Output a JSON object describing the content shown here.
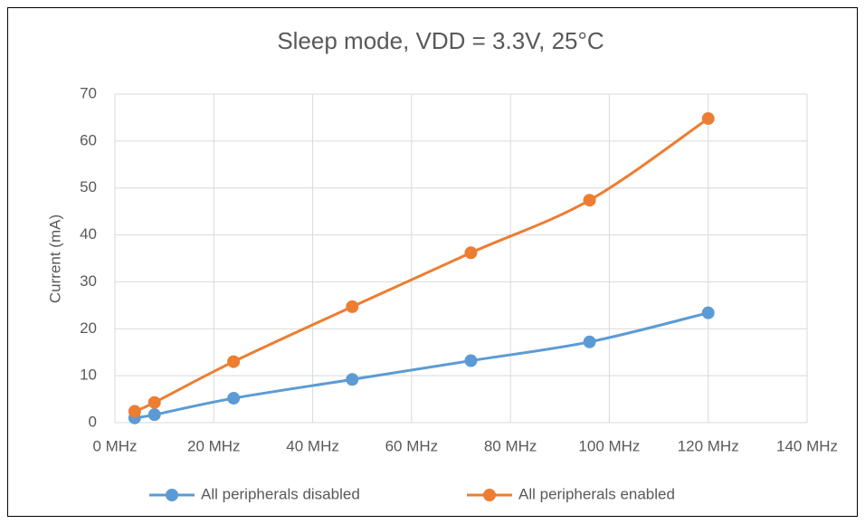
{
  "chart_data": {
    "type": "line",
    "title": "Sleep mode, VDD = 3.3V, 25°C",
    "y_label": "Current (mA)",
    "x": [
      4,
      8,
      24,
      48,
      72,
      96,
      120
    ],
    "series": [
      {
        "name": "All peripherals disabled",
        "color": "#5b9bd5",
        "values": [
          1.0,
          1.7,
          5.2,
          9.2,
          13.2,
          17.2,
          23.4
        ]
      },
      {
        "name": "All peripherals enabled",
        "color": "#ed7d31",
        "values": [
          2.4,
          4.3,
          13.0,
          24.7,
          36.2,
          47.4,
          64.8
        ]
      }
    ],
    "xlim": [
      0,
      140
    ],
    "xticks": [
      {
        "value": 0,
        "label": "0 MHz"
      },
      {
        "value": 20,
        "label": "20 MHz"
      },
      {
        "value": 40,
        "label": "40 MHz"
      },
      {
        "value": 60,
        "label": "60 MHz"
      },
      {
        "value": 80,
        "label": "80 MHz"
      },
      {
        "value": 100,
        "label": "100 MHz"
      },
      {
        "value": 120,
        "label": "120 MHz"
      },
      {
        "value": 140,
        "label": "140 MHz"
      }
    ],
    "ylim": [
      0,
      70
    ],
    "yticks": [
      0,
      10,
      20,
      30,
      40,
      50,
      60,
      70
    ],
    "grid": true,
    "legend": "bottom"
  }
}
